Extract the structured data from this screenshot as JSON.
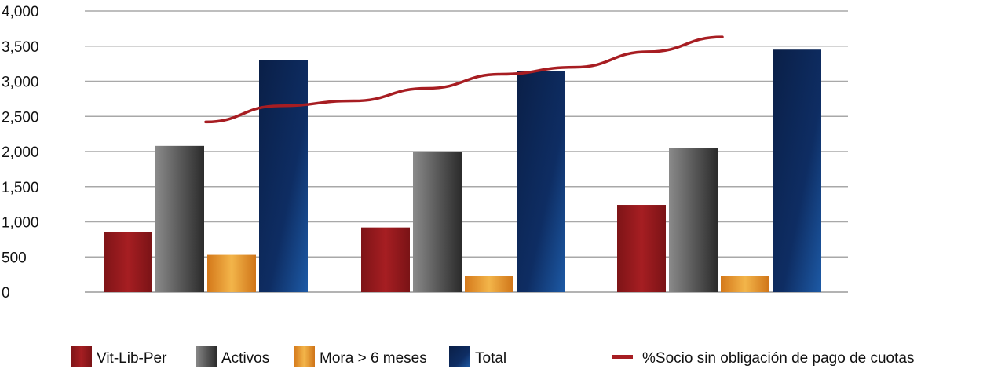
{
  "chart_data": {
    "type": "bar",
    "title": "",
    "xlabel": "",
    "ylabel": "",
    "ylim": [
      0,
      4000
    ],
    "yticks": [
      "0",
      "500",
      "1,000",
      "1,500",
      "2,000",
      "2,500",
      "3,000",
      "3,500",
      "4,000"
    ],
    "ytick_values": [
      0,
      500,
      1000,
      1500,
      2000,
      2500,
      3000,
      3500,
      4000
    ],
    "grid": true,
    "legend_position": "bottom",
    "group_count": 3,
    "series": [
      {
        "name": "Vit-Lib-Per",
        "values": [
          860,
          920,
          1240
        ],
        "color": "#9b1c1f"
      },
      {
        "name": "Activos",
        "values": [
          2080,
          2000,
          2050
        ],
        "color": "#555555"
      },
      {
        "name": "Mora > 6 meses",
        "values": [
          530,
          230,
          230
        ],
        "color": "#e89a2c"
      },
      {
        "name": "Total",
        "values": [
          3300,
          3150,
          3450
        ],
        "color": "#0f2f66"
      }
    ],
    "line_series": {
      "name": "%Socio sin obligación de pago de cuotas",
      "color": "#a71d22",
      "values": [
        2420,
        2650,
        2720,
        2900,
        3100,
        3200,
        3420,
        3630
      ]
    }
  }
}
